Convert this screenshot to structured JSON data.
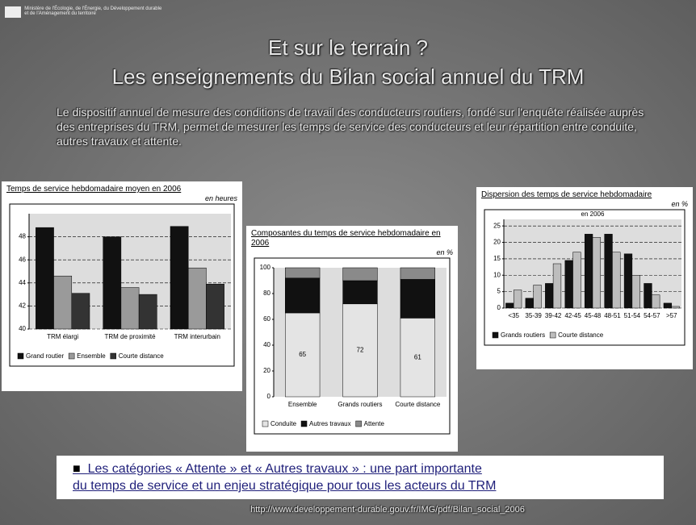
{
  "header": {
    "logo_text": "Ministère de l'Écologie, de l'Énergie, du Développement durable et de l'Aménagement du territoire"
  },
  "title": [
    "Et sur le terrain ?",
    "Les enseignements du Bilan social annuel du TRM"
  ],
  "intro": "Le dispositif annuel de mesure des conditions de travail des conducteurs routiers, fondé sur l'enquête réalisée auprès des entreprises du TRM, permet de mesurer les temps de service des conducteurs et leur répartition entre conduite, autres travaux et attente.",
  "chart_data": [
    {
      "type": "bar",
      "title": "Temps de service hebdomadaire moyen en 2006",
      "unit": "en heures",
      "categories": [
        "TRM élargi",
        "TRM de proximité",
        "TRM interurbain"
      ],
      "series": [
        {
          "name": "Grand routier",
          "color": "#111111",
          "values": [
            48.8,
            48.0,
            48.9
          ]
        },
        {
          "name": "Ensemble",
          "color": "#9a9a9a",
          "values": [
            44.6,
            43.6,
            45.3
          ]
        },
        {
          "name": "Courte distance",
          "color": "#333333",
          "values": [
            43.1,
            43.0,
            43.9
          ]
        }
      ],
      "ylim": [
        40,
        50
      ],
      "yticks": [
        40,
        42,
        44,
        46,
        48
      ],
      "grid": true
    },
    {
      "type": "stacked_bar",
      "title": "Composantes du temps de service hebdomadaire en 2006",
      "unit": "en %",
      "categories": [
        "Ensemble",
        "Grands routiers",
        "Courte distance"
      ],
      "series": [
        {
          "name": "Conduite",
          "color": "#e4e4e4",
          "values": [
            65,
            72,
            61
          ],
          "show_labels": true
        },
        {
          "name": "Autres travaux",
          "color": "#111111",
          "values": [
            27,
            18,
            30
          ]
        },
        {
          "name": "Attente",
          "color": "#8a8a8a",
          "values": [
            8,
            10,
            9
          ]
        }
      ],
      "ylim": [
        0,
        100
      ],
      "yticks": [
        0,
        20,
        40,
        60,
        80,
        100
      ],
      "grid": false
    },
    {
      "type": "bar",
      "title": "Dispersion des temps de service hebdomadaire",
      "unit": "en %",
      "subtitle": "en 2006",
      "categories": [
        "<35",
        "35-39",
        "39-42",
        "42-45",
        "45-48",
        "48-51",
        "51-54",
        "54-57",
        ">57"
      ],
      "series": [
        {
          "name": "Grands routiers",
          "color": "#111111",
          "values": [
            1.5,
            3,
            7.5,
            14.5,
            22.5,
            22.5,
            16.5,
            7.5,
            1.5
          ]
        },
        {
          "name": "Courte distance",
          "color": "#bdbdbd",
          "values": [
            5.5,
            7,
            13.5,
            17,
            21.5,
            17,
            10,
            4,
            0.5
          ]
        }
      ],
      "ylim": [
        0,
        27
      ],
      "yticks": [
        0,
        5,
        10,
        15,
        20,
        25
      ],
      "grid": true
    }
  ],
  "conclusion": [
    "Les catégories « Attente » et « Autres travaux » : une part importante",
    "du temps de service et un enjeu stratégique pour tous les acteurs du TRM"
  ],
  "source": "http://www.developpement-durable.gouv.fr/IMG/pdf/Bilan_social_2006"
}
